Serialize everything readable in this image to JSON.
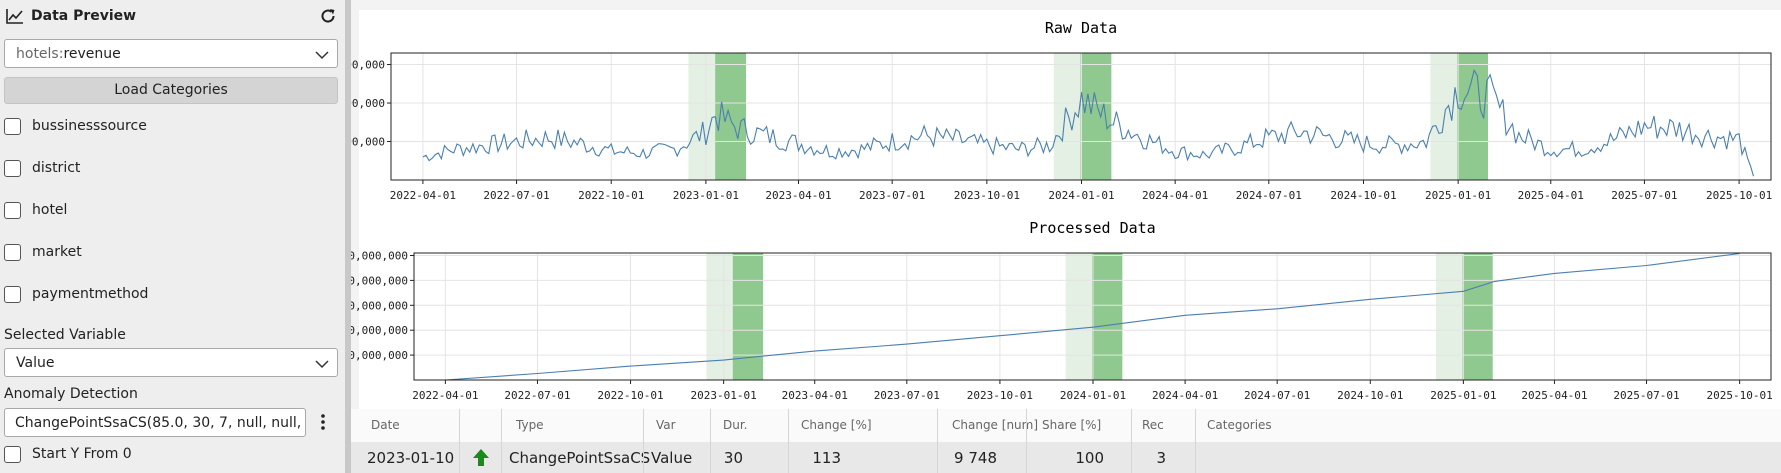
{
  "sidebar": {
    "title": "Data Preview",
    "dataset_prefix": "hotels:",
    "dataset_name": "revenue",
    "load_button": "Load Categories",
    "categories": [
      "bussinesssource",
      "district",
      "hotel",
      "market",
      "paymentmethod"
    ],
    "selected_variable_label": "Selected Variable",
    "selected_variable": "Value",
    "anomaly_label": "Anomaly Detection",
    "anomaly_value": "ChangePointSsaCS(85.0, 30, 7, null, null, nu",
    "start_y_label": "Start Y From 0"
  },
  "colors": {
    "line": "#4a7fb0",
    "band_light": "#e3f0e3",
    "band_dark": "#8fc98f",
    "arrow": "#1a8a1a"
  },
  "icons": {
    "title": "chart-line-icon",
    "refresh": "refresh-icon",
    "select": "chevron-down-icon",
    "menu": "kebab-menu-icon",
    "change": "arrow-up-icon"
  },
  "chart_data": [
    {
      "type": "line",
      "title": "Raw Data",
      "x_ticks": [
        "2022-04-01",
        "2022-07-01",
        "2022-10-01",
        "2023-01-01",
        "2023-04-01",
        "2023-07-01",
        "2023-10-01",
        "2024-01-01",
        "2024-04-01",
        "2024-07-01",
        "2024-10-01",
        "2025-01-01",
        "2025-04-01",
        "2025-07-01",
        "2025-10-01"
      ],
      "y_ticks": [
        "2,000,000",
        "4,000,000",
        "6,000,000"
      ],
      "x_range": [
        "2022-03-01",
        "2025-11-01"
      ],
      "ylim": [
        0,
        6600000
      ],
      "grid": true,
      "highlight_periods": [
        {
          "light_start": "2022-12-15",
          "dark_start": "2023-01-10",
          "end": "2023-02-09"
        },
        {
          "light_start": "2023-12-05",
          "dark_start": "2023-12-31",
          "end": "2024-01-30"
        },
        {
          "light_start": "2024-12-05",
          "dark_start": "2024-12-31",
          "end": "2025-01-30"
        }
      ],
      "series": [
        {
          "points": [
            [
              "2022-04-01",
              1200000
            ],
            [
              "2022-05-01",
              1600000
            ],
            [
              "2022-06-01",
              1800000
            ],
            [
              "2022-07-01",
              2000000
            ],
            [
              "2022-08-01",
              2200000
            ],
            [
              "2022-09-01",
              1900000
            ],
            [
              "2022-10-01",
              1500000
            ],
            [
              "2022-11-01",
              1400000
            ],
            [
              "2022-12-01",
              1600000
            ],
            [
              "2023-01-01",
              2500000
            ],
            [
              "2023-01-10",
              3400000
            ],
            [
              "2023-02-01",
              2700000
            ],
            [
              "2023-03-01",
              2300000
            ],
            [
              "2023-04-01",
              1900000
            ],
            [
              "2023-05-01",
              1500000
            ],
            [
              "2023-06-01",
              1600000
            ],
            [
              "2023-07-01",
              2000000
            ],
            [
              "2023-08-01",
              2300000
            ],
            [
              "2023-09-01",
              2100000
            ],
            [
              "2023-10-01",
              1800000
            ],
            [
              "2023-11-01",
              1600000
            ],
            [
              "2023-12-01",
              1800000
            ],
            [
              "2024-01-01",
              4200000
            ],
            [
              "2024-02-01",
              3000000
            ],
            [
              "2024-03-01",
              2200000
            ],
            [
              "2024-04-01",
              1500000
            ],
            [
              "2024-05-01",
              1300000
            ],
            [
              "2024-06-01",
              1700000
            ],
            [
              "2024-07-01",
              2200000
            ],
            [
              "2024-08-01",
              2500000
            ],
            [
              "2024-09-01",
              2200000
            ],
            [
              "2024-10-01",
              1900000
            ],
            [
              "2024-11-01",
              1800000
            ],
            [
              "2024-12-01",
              2000000
            ],
            [
              "2025-01-01",
              4800000
            ],
            [
              "2025-02-01",
              4300000
            ],
            [
              "2025-03-01",
              2300000
            ],
            [
              "2025-04-01",
              1600000
            ],
            [
              "2025-05-01",
              1600000
            ],
            [
              "2025-06-01",
              2100000
            ],
            [
              "2025-07-01",
              2800000
            ],
            [
              "2025-08-01",
              2700000
            ],
            [
              "2025-09-01",
              2300000
            ],
            [
              "2025-10-01",
              2100000
            ],
            [
              "2025-10-15",
              200000
            ]
          ]
        }
      ]
    },
    {
      "type": "line",
      "title": "Processed Data",
      "x_ticks": [
        "2022-04-01",
        "2022-07-01",
        "2022-10-01",
        "2023-01-01",
        "2023-04-01",
        "2023-07-01",
        "2023-10-01",
        "2024-01-01",
        "2024-04-01",
        "2024-07-01",
        "2024-10-01",
        "2025-01-01",
        "2025-04-01",
        "2025-07-01",
        "2025-10-01"
      ],
      "y_ticks": [
        "500,000,000",
        "1,000,000,000",
        "1,500,000,000",
        "2,000,000,000",
        "2,500,000,000"
      ],
      "x_range": [
        "2022-03-01",
        "2025-11-01"
      ],
      "ylim": [
        0,
        2550000000
      ],
      "grid": true,
      "highlight_periods": [
        {
          "light_start": "2022-12-15",
          "dark_start": "2023-01-10",
          "end": "2023-02-09"
        },
        {
          "light_start": "2023-12-05",
          "dark_start": "2023-12-31",
          "end": "2024-01-30"
        },
        {
          "light_start": "2024-12-05",
          "dark_start": "2024-12-31",
          "end": "2025-01-30"
        }
      ],
      "series": [
        {
          "points": [
            [
              "2022-04-01",
              0
            ],
            [
              "2022-07-01",
              130000000
            ],
            [
              "2022-10-01",
              280000000
            ],
            [
              "2023-01-01",
              400000000
            ],
            [
              "2023-02-09",
              480000000
            ],
            [
              "2023-04-01",
              580000000
            ],
            [
              "2023-07-01",
              720000000
            ],
            [
              "2023-10-01",
              890000000
            ],
            [
              "2024-01-01",
              1060000000
            ],
            [
              "2024-04-01",
              1300000000
            ],
            [
              "2024-07-01",
              1430000000
            ],
            [
              "2024-10-01",
              1620000000
            ],
            [
              "2025-01-01",
              1780000000
            ],
            [
              "2025-02-01",
              1980000000
            ],
            [
              "2025-04-01",
              2140000000
            ],
            [
              "2025-07-01",
              2300000000
            ],
            [
              "2025-10-01",
              2540000000
            ]
          ]
        }
      ]
    }
  ],
  "table": {
    "headers": [
      "Date",
      "",
      "Type",
      "Var",
      "Dur.",
      "Change [%]",
      "Change [num]",
      "Share [%]",
      "Rec",
      "Categories"
    ],
    "rows": [
      [
        "2023-01-10",
        "",
        "ChangePointSsaCS",
        "Value",
        "30",
        "113",
        "9 748",
        "100",
        "3",
        ""
      ]
    ]
  }
}
